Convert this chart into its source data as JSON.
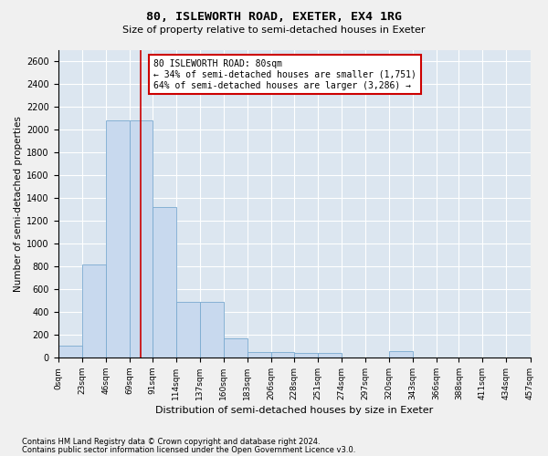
{
  "title": "80, ISLEWORTH ROAD, EXETER, EX4 1RG",
  "subtitle": "Size of property relative to semi-detached houses in Exeter",
  "xlabel": "Distribution of semi-detached houses by size in Exeter",
  "ylabel": "Number of semi-detached properties",
  "bar_color": "#c8d9ee",
  "bar_edge_color": "#7aaad0",
  "background_color": "#dce6f0",
  "grid_color": "#ffffff",
  "property_size": 80,
  "property_line_color": "#cc0000",
  "annotation_text": "80 ISLEWORTH ROAD: 80sqm\n← 34% of semi-detached houses are smaller (1,751)\n64% of semi-detached houses are larger (3,286) →",
  "annotation_box_facecolor": "#ffffff",
  "annotation_border_color": "#cc0000",
  "bin_edges": [
    0,
    23,
    46,
    69,
    91,
    114,
    137,
    160,
    183,
    206,
    228,
    251,
    274,
    297,
    320,
    343,
    366,
    388,
    411,
    434,
    457
  ],
  "bin_labels": [
    "0sqm",
    "23sqm",
    "46sqm",
    "69sqm",
    "91sqm",
    "114sqm",
    "137sqm",
    "160sqm",
    "183sqm",
    "206sqm",
    "228sqm",
    "251sqm",
    "274sqm",
    "297sqm",
    "320sqm",
    "343sqm",
    "366sqm",
    "388sqm",
    "411sqm",
    "434sqm",
    "457sqm"
  ],
  "bar_heights": [
    100,
    820,
    2080,
    2080,
    1320,
    490,
    490,
    165,
    50,
    50,
    40,
    40,
    0,
    0,
    55,
    0,
    0,
    0,
    0,
    0
  ],
  "ylim": [
    0,
    2700
  ],
  "yticks": [
    0,
    200,
    400,
    600,
    800,
    1000,
    1200,
    1400,
    1600,
    1800,
    2000,
    2200,
    2400,
    2600
  ],
  "fig_bg_color": "#f0f0f0",
  "footnote1": "Contains HM Land Registry data © Crown copyright and database right 2024.",
  "footnote2": "Contains public sector information licensed under the Open Government Licence v3.0."
}
